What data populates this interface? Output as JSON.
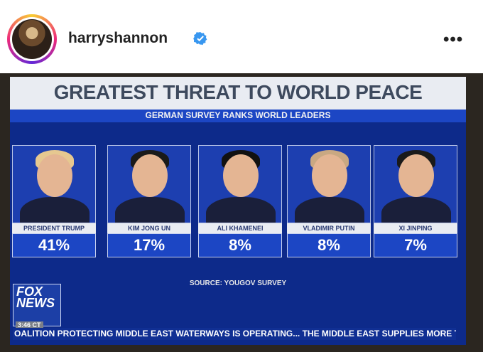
{
  "post_header": {
    "username": "harryshannon",
    "more_label": "•••",
    "icons": [
      "verified-badge-icon",
      "more-options-icon",
      "profile-avatar"
    ]
  },
  "broadcast": {
    "title": "GREATEST THREAT TO WORLD PEACE",
    "subtitle": "GERMAN SURVEY RANKS WORLD LEADERS",
    "source": "SOURCE: YOUGOV SURVEY",
    "logo_text": "FOX NEWS",
    "logo_line1": "FOX",
    "logo_line2": "NEWS",
    "time": "3:46 CT",
    "ticker": "OALITION PROTECTING MIDDLE EAST WATERWAYS IS OPERATING... THE MIDDLE EAST SUPPLIES MORE THA",
    "colors": {
      "board": "#0d2a8a",
      "title_bar": "#e9ecf2",
      "accent_blue": "#1c46c4"
    }
  },
  "leaders": [
    {
      "name": "PRESIDENT TRUMP",
      "percent": "41%",
      "hair": "#e6c890"
    },
    {
      "name": "KIM JONG UN",
      "percent": "17%",
      "hair": "#1a1a1a"
    },
    {
      "name": "ALI KHAMENEI",
      "percent": "8%",
      "hair": "#111111"
    },
    {
      "name": "VLADIMIR PUTIN",
      "percent": "8%",
      "hair": "#c9a882"
    },
    {
      "name": "XI JINPING",
      "percent": "7%",
      "hair": "#1a1a1a"
    }
  ]
}
